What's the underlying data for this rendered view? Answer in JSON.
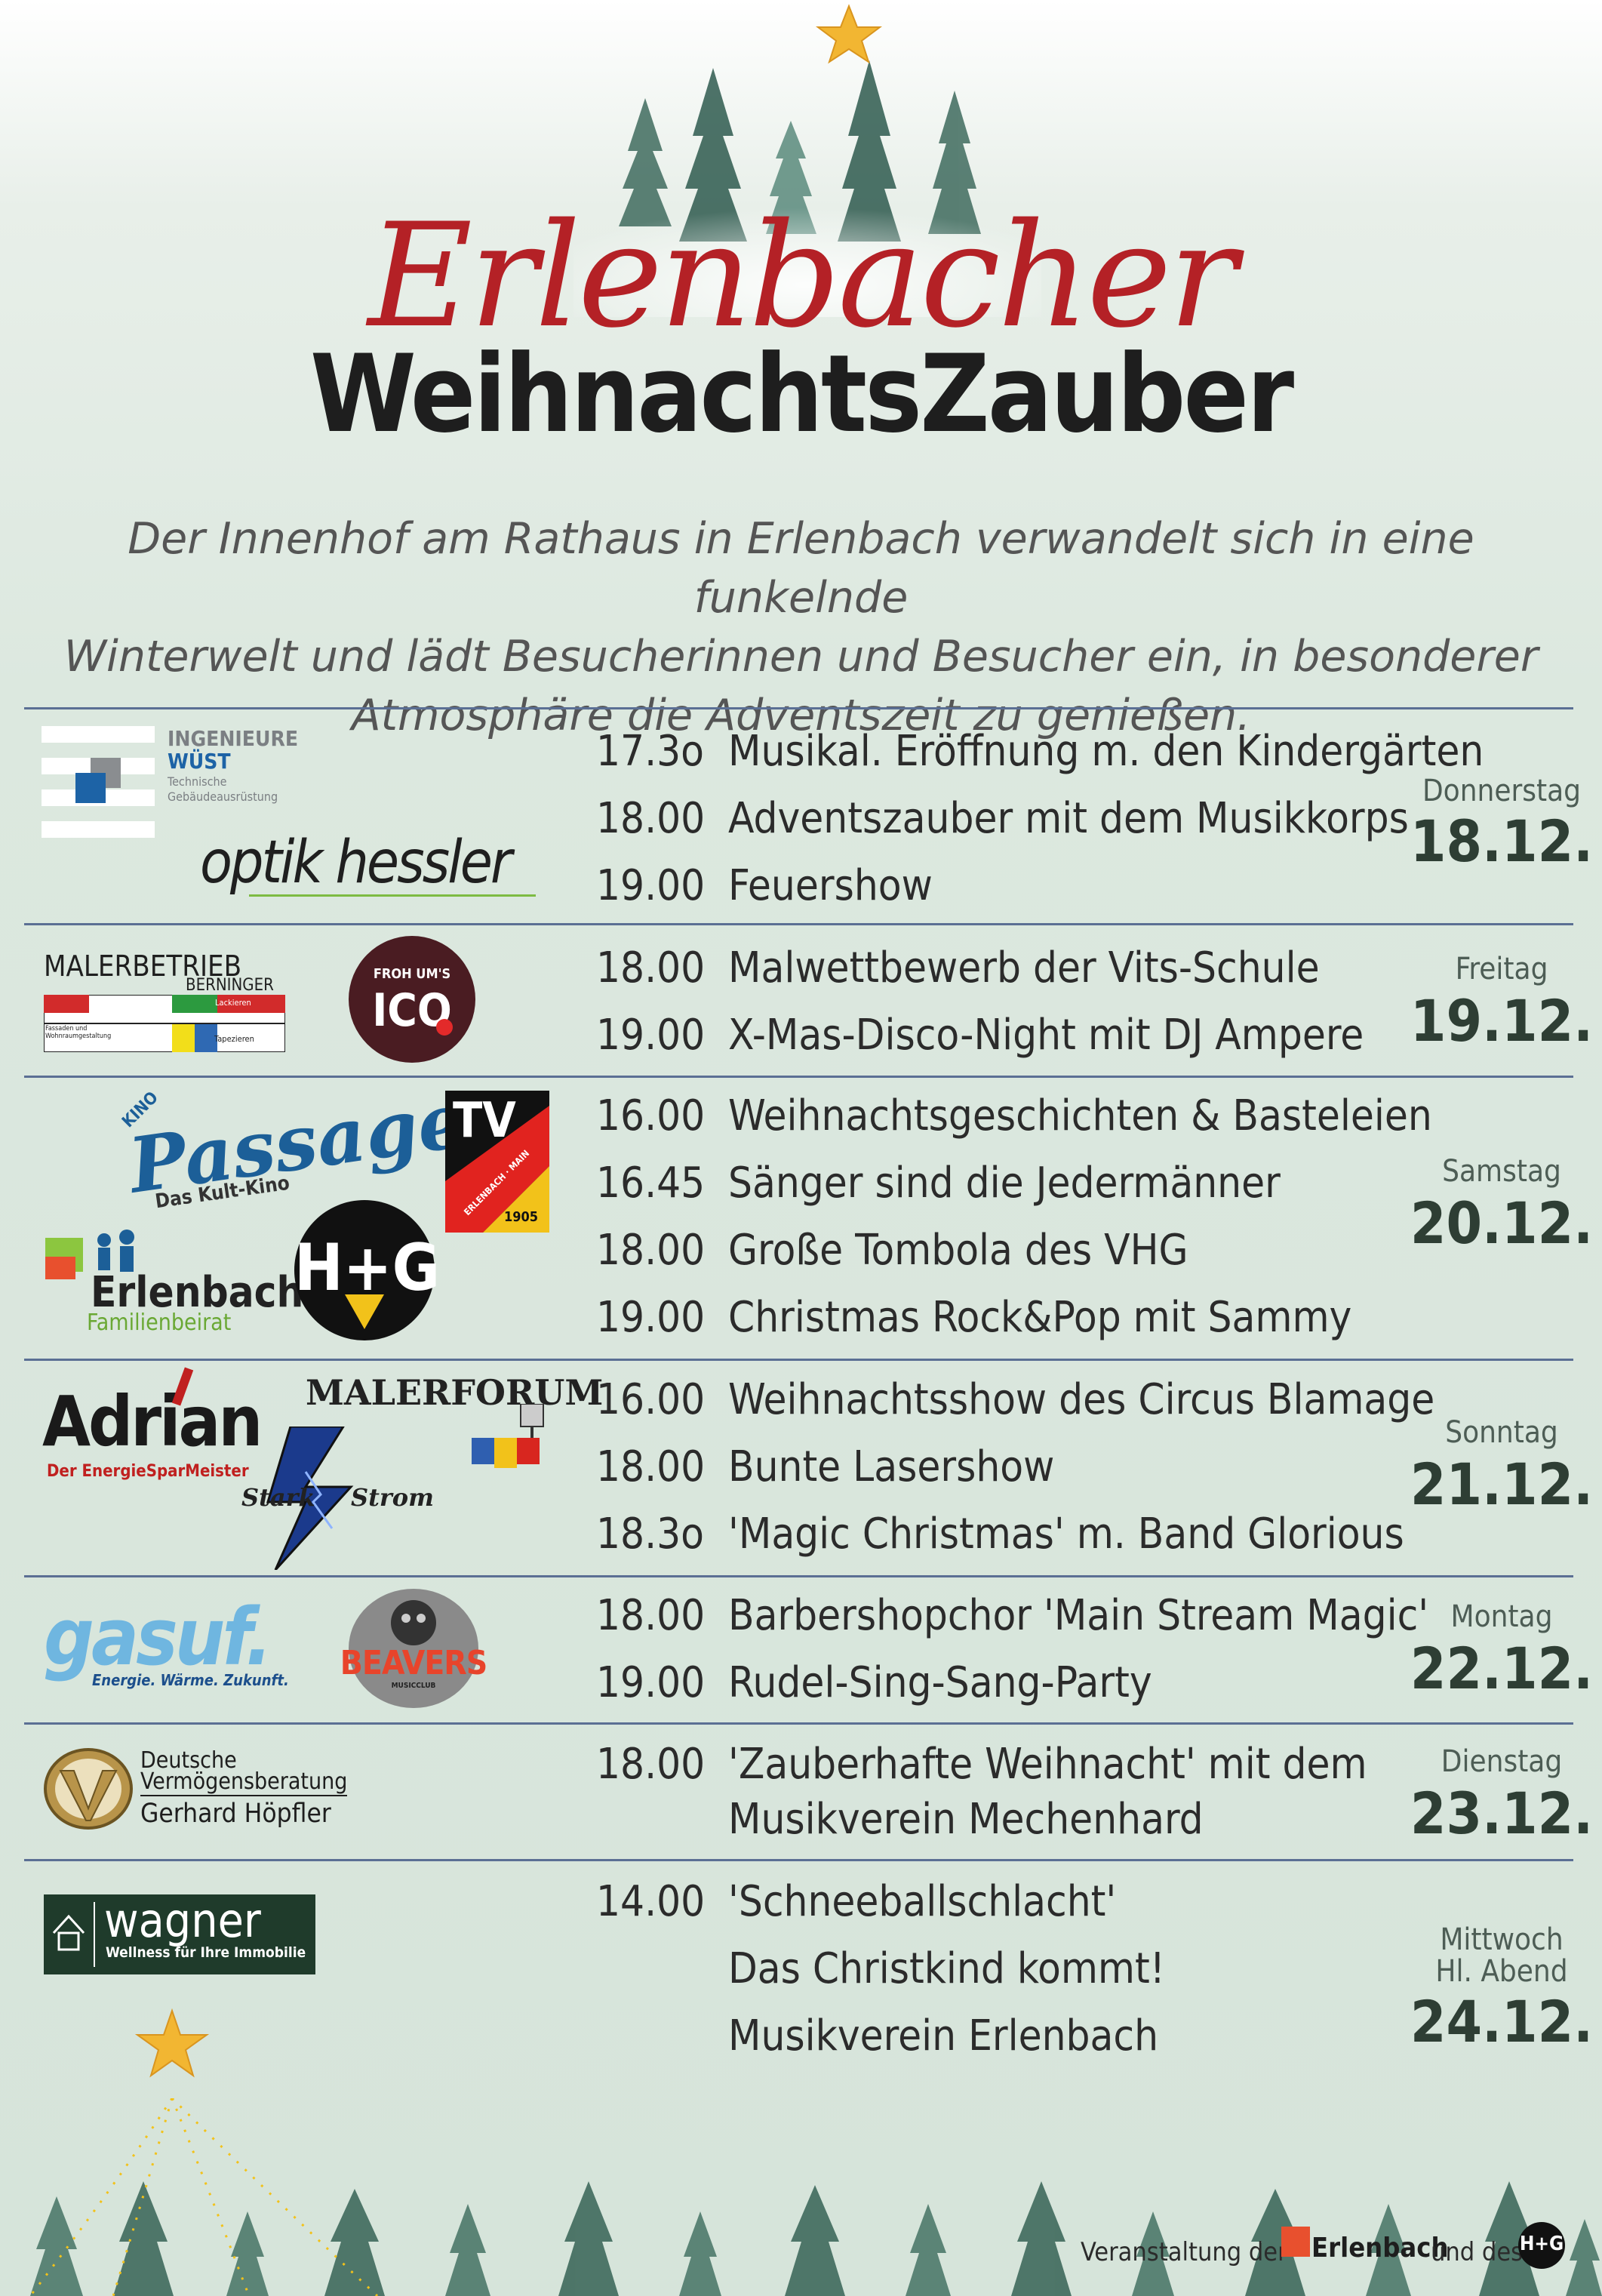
{
  "header": {
    "title_script": "Erlenbacher",
    "title_main": "WeihnachtsZauber",
    "intro_lines": [
      "Der Innenhof am Rathaus in Erlenbach verwandelt sich in eine funkelnde",
      "Winterwelt und lädt Besucherinnen und Besucher ein, in besonderer",
      "Atmosphäre die Adventszeit zu genießen."
    ]
  },
  "days": [
    {
      "weekday": "Donnerstag",
      "date": "18.12.",
      "events": [
        {
          "time": "17.3o",
          "title": "Musikal. Eröffnung m. den Kindergärten"
        },
        {
          "time": "18.00",
          "title": "Adventszauber mit dem Musikkorps"
        },
        {
          "time": "19.00",
          "title": "Feuershow"
        }
      ],
      "sponsors": {
        "wuest_1": "INGENIEURE",
        "wuest_2": "WÜST",
        "wuest_3": "Technische",
        "wuest_4": "Gebäudeausrüstung",
        "hessler": "optik hessler"
      }
    },
    {
      "weekday": "Freitag",
      "date": "19.12.",
      "events": [
        {
          "time": "18.00",
          "title": "Malwettbewerb der Vits-Schule"
        },
        {
          "time": "19.00",
          "title": "X-Mas-Disco-Night mit DJ Ampere"
        }
      ],
      "sponsors": {
        "berninger_1": "MALERBETRIEB",
        "berninger_2": "BERNINGER",
        "berninger_3": "Anstrich",
        "berninger_4": "Lackieren",
        "berninger_5": "Fassaden und Wohnraumgestaltung",
        "berninger_6": "Tapezieren",
        "ico_1": "FROH UM'S",
        "ico_2": "ICO"
      }
    },
    {
      "weekday": "Samstag",
      "date": "20.12.",
      "events": [
        {
          "time": "16.00",
          "title": "Weihnachtsgeschichten & Basteleien"
        },
        {
          "time": "16.45",
          "title": "Sänger sind die Jedermänner"
        },
        {
          "time": "18.00",
          "title": "Große Tombola des VHG"
        },
        {
          "time": "19.00",
          "title": "Christmas Rock&Pop mit Sammy"
        }
      ],
      "sponsors": {
        "kino_1": "KINO",
        "kino_2": "Passage",
        "kino_3": "Das Kult-Kino",
        "tv_1": "TV",
        "tv_2": "ERLENBACH · MAIN",
        "tv_3": "1905",
        "fam_1": "Erlenbach",
        "fam_2": "Familienbeirat",
        "hg": "H+G"
      }
    },
    {
      "weekday": "Sonntag",
      "date": "21.12.",
      "events": [
        {
          "time": "16.00",
          "title": "Weihnachtsshow des Circus Blamage"
        },
        {
          "time": "18.00",
          "title": "Bunte Lasershow"
        },
        {
          "time": "18.3o",
          "title": "'Magic Christmas' m. Band Glorious"
        }
      ],
      "sponsors": {
        "adrian_1": "Adrian",
        "adrian_2": "Der EnergieSparMeister",
        "malerforum": "MALERFORUM",
        "stark_1": "Stark",
        "stark_2": "Strom"
      }
    },
    {
      "weekday": "Montag",
      "date": "22.12.",
      "events": [
        {
          "time": "18.00",
          "title": "Barbershopchor 'Main Stream Magic'"
        },
        {
          "time": "19.00",
          "title": "Rudel-Sing-Sang-Party"
        }
      ],
      "sponsors": {
        "gasuf_1": "gasuf.",
        "gasuf_2": "Energie. Wärme. Zukunft.",
        "beavers_1": "BEAVERS",
        "beavers_2": "MUSICCLUB"
      }
    },
    {
      "weekday": "Dienstag",
      "date": "23.12.",
      "events": [
        {
          "time": "18.00",
          "title": "'Zauberhafte Weihnacht' mit dem"
        },
        {
          "time": "",
          "title": "Musikverein Mechenhard"
        }
      ],
      "sponsors": {
        "dvag_1": "Deutsche",
        "dvag_2": "Vermögensberatung",
        "dvag_3": "Gerhard Höpfler"
      }
    },
    {
      "weekday": "Mittwoch",
      "weekday2": "Hl. Abend",
      "date": "24.12.",
      "events": [
        {
          "time": "14.00",
          "title": "'Schneeballschlacht'"
        },
        {
          "time": "",
          "title": "Das Christkind kommt!"
        },
        {
          "time": "",
          "title": "Musikverein Erlenbach"
        }
      ],
      "sponsors": {
        "wagner_1": "wagner",
        "wagner_2": "Wellness für Ihre Immobilie"
      }
    }
  ],
  "footer": {
    "text_1": "Veranstaltung der",
    "logo_1": "Erlenbach",
    "text_2": "und des",
    "logo_2": "H+G"
  },
  "colors": {
    "accent_red": "#b42126",
    "rule_blue": "#5b6f94",
    "title_dark": "#1e1e1e",
    "date_green": "#2e3e34"
  }
}
